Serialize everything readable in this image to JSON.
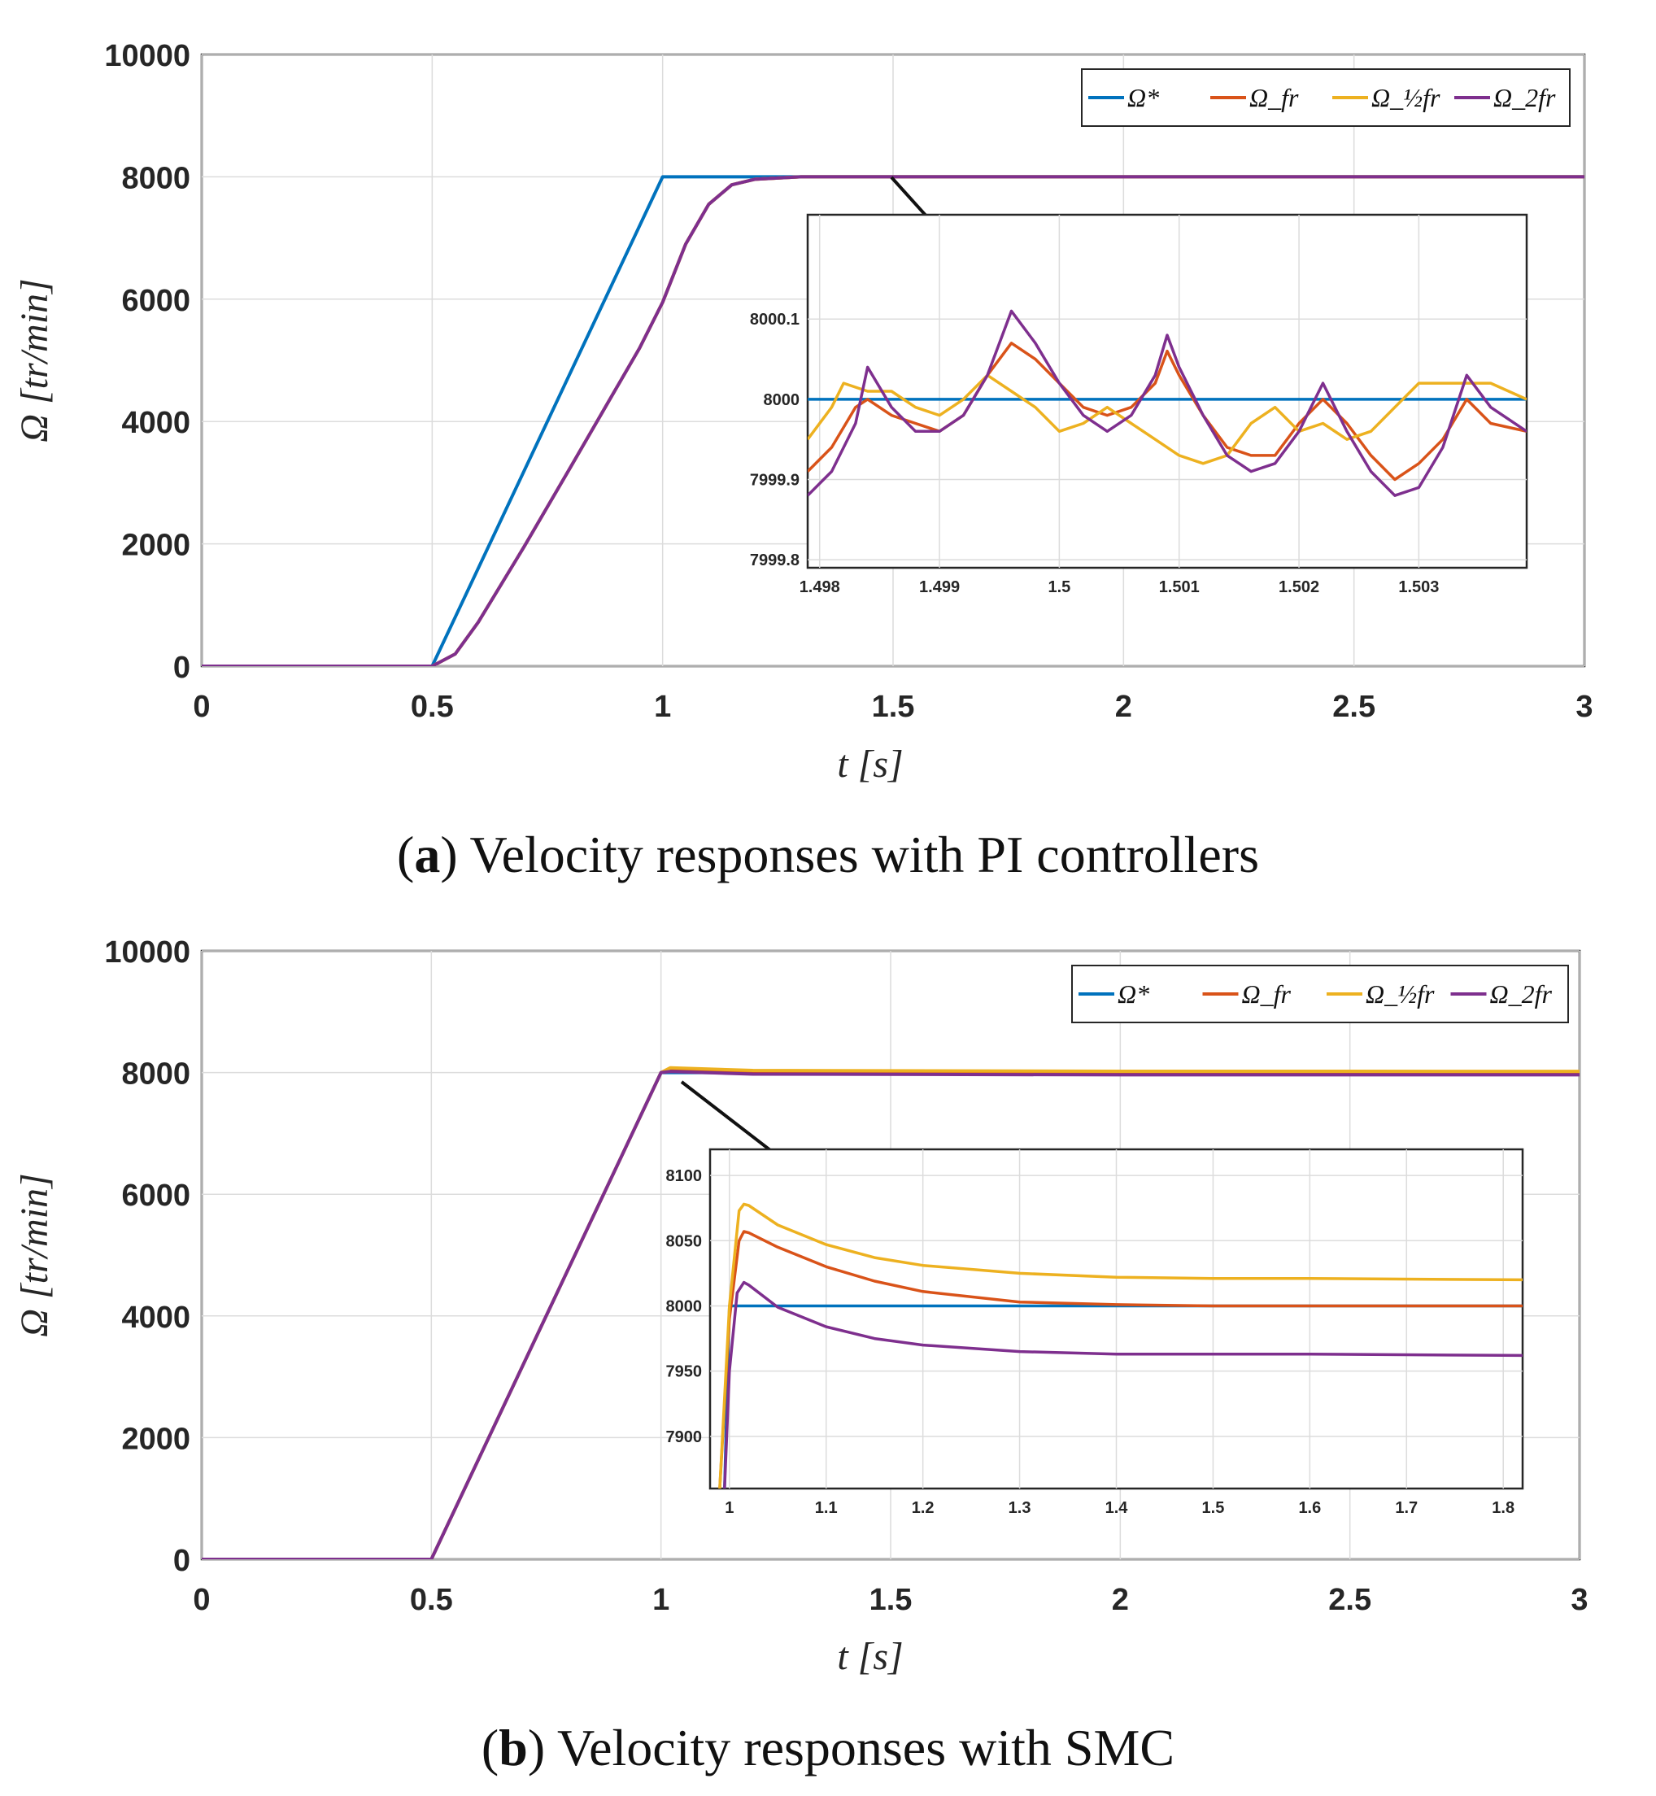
{
  "chart_data": [
    {
      "id": "a",
      "type": "line",
      "caption_letter": "a",
      "caption_text": ") Velocity responses with PI controllers",
      "caption_open": "(",
      "xlabel": "t [s]",
      "ylabel": "Ω [tr/min]",
      "xlim": [
        0,
        3
      ],
      "ylim": [
        0,
        10000
      ],
      "xticks": [
        "0",
        "0.5",
        "1",
        "1.5",
        "2",
        "2.5",
        "3"
      ],
      "yticks": [
        "0",
        "2000",
        "4000",
        "6000",
        "8000",
        "10000"
      ],
      "grid": true,
      "legend": {
        "placement": "top-right",
        "entries": [
          "Ω*",
          "Ω_fr",
          "Ω_½fr",
          "Ω_2fr"
        ]
      },
      "series": [
        {
          "name": "Ω*",
          "color": "#0072BD",
          "x": [
            0,
            0.5,
            1.0,
            3.0
          ],
          "y": [
            0,
            0,
            8000,
            8000
          ]
        },
        {
          "name": "Ω_fr",
          "color": "#D95319",
          "x": [
            0,
            0.5,
            0.55,
            0.6,
            0.7,
            0.8,
            0.9,
            0.95,
            1.0,
            1.05,
            1.1,
            1.15,
            1.2,
            1.3,
            3.0
          ],
          "y": [
            0,
            0,
            200,
            720,
            1960,
            3250,
            4550,
            5200,
            5950,
            6900,
            7550,
            7870,
            7960,
            8000,
            8000
          ]
        },
        {
          "name": "Ω_½fr",
          "color": "#EDB120",
          "x": [
            0,
            0.5,
            0.55,
            0.6,
            0.7,
            0.8,
            0.9,
            0.95,
            1.0,
            1.05,
            1.1,
            1.15,
            1.2,
            1.3,
            3.0
          ],
          "y": [
            0,
            0,
            200,
            720,
            1960,
            3250,
            4550,
            5200,
            5950,
            6900,
            7550,
            7870,
            7960,
            8000,
            8000
          ]
        },
        {
          "name": "Ω_2fr",
          "color": "#7E2F8E",
          "x": [
            0,
            0.5,
            0.55,
            0.6,
            0.7,
            0.8,
            0.9,
            0.95,
            1.0,
            1.05,
            1.1,
            1.15,
            1.2,
            1.3,
            3.0
          ],
          "y": [
            0,
            0,
            200,
            720,
            1960,
            3250,
            4550,
            5200,
            5950,
            6900,
            7550,
            7870,
            7960,
            8000,
            8000
          ]
        }
      ],
      "annotation": {
        "type": "arrow",
        "from": [
          1.5,
          8000
        ],
        "note": "zoom inset"
      },
      "inset": {
        "xlim": [
          1.4979,
          1.5039
        ],
        "ylim": [
          7999.79,
          8000.23
        ],
        "xticks": [
          1.498,
          1.499,
          1.5,
          1.501,
          1.502,
          1.503
        ],
        "xtick_labels": [
          "1.498",
          "1.499",
          "1.5",
          "1.501",
          "1.502",
          "1.503"
        ],
        "yticks": [
          7999.8,
          7999.9,
          8000,
          8000.1
        ],
        "ytick_labels": [
          "7999.8",
          "7999.9",
          "8000",
          "8000.1"
        ],
        "series": [
          {
            "name": "Ω*",
            "color": "#0072BD",
            "x": [
              1.4979,
              1.5039
            ],
            "y": [
              8000,
              8000
            ]
          },
          {
            "name": "Ω_fr",
            "color": "#D95319",
            "x": [
              1.4979,
              1.4981,
              1.4983,
              1.4984,
              1.4986,
              1.4988,
              1.499,
              1.4992,
              1.4994,
              1.4996,
              1.4998,
              1.5,
              1.5002,
              1.5004,
              1.5006,
              1.5008,
              1.5009,
              1.501,
              1.5012,
              1.5014,
              1.5016,
              1.5018,
              1.502,
              1.5022,
              1.5024,
              1.5026,
              1.5028,
              1.503,
              1.5032,
              1.5034,
              1.5036,
              1.5039
            ],
            "y": [
              7999.91,
              7999.94,
              7999.99,
              8000.0,
              7999.98,
              7999.97,
              7999.96,
              7999.98,
              8000.03,
              8000.07,
              8000.05,
              8000.02,
              7999.99,
              7999.98,
              7999.99,
              8000.02,
              8000.06,
              8000.03,
              7999.98,
              7999.94,
              7999.93,
              7999.93,
              7999.97,
              8000.0,
              7999.97,
              7999.93,
              7999.9,
              7999.92,
              7999.95,
              8000.0,
              7999.97,
              7999.96
            ]
          },
          {
            "name": "Ω_½fr",
            "color": "#EDB120",
            "x": [
              1.4979,
              1.4981,
              1.4982,
              1.4984,
              1.4986,
              1.4988,
              1.499,
              1.4992,
              1.4994,
              1.4996,
              1.4998,
              1.5,
              1.5002,
              1.5004,
              1.5006,
              1.5008,
              1.501,
              1.5012,
              1.5014,
              1.5016,
              1.5018,
              1.502,
              1.5022,
              1.5024,
              1.5026,
              1.5028,
              1.503,
              1.5032,
              1.5034,
              1.5036,
              1.5039
            ],
            "y": [
              7999.95,
              7999.99,
              8000.02,
              8000.01,
              8000.01,
              7999.99,
              7999.98,
              8000.0,
              8000.03,
              8000.01,
              7999.99,
              7999.96,
              7999.97,
              7999.99,
              7999.97,
              7999.95,
              7999.93,
              7999.92,
              7999.93,
              7999.97,
              7999.99,
              7999.96,
              7999.97,
              7999.95,
              7999.96,
              7999.99,
              8000.02,
              8000.02,
              8000.02,
              8000.02,
              8000.0
            ]
          },
          {
            "name": "Ω_2fr",
            "color": "#7E2F8E",
            "x": [
              1.4979,
              1.4981,
              1.4983,
              1.4984,
              1.4986,
              1.4988,
              1.499,
              1.4992,
              1.4994,
              1.4996,
              1.4998,
              1.5,
              1.5002,
              1.5004,
              1.5006,
              1.5008,
              1.5009,
              1.501,
              1.5012,
              1.5014,
              1.5016,
              1.5018,
              1.502,
              1.5022,
              1.5024,
              1.5026,
              1.5028,
              1.503,
              1.5032,
              1.5034,
              1.5036,
              1.5039
            ],
            "y": [
              7999.88,
              7999.91,
              7999.97,
              8000.04,
              7999.99,
              7999.96,
              7999.96,
              7999.98,
              8000.03,
              8000.11,
              8000.07,
              8000.02,
              7999.98,
              7999.96,
              7999.98,
              8000.03,
              8000.08,
              8000.04,
              7999.98,
              7999.93,
              7999.91,
              7999.92,
              7999.96,
              8000.02,
              7999.96,
              7999.91,
              7999.88,
              7999.89,
              7999.94,
              8000.03,
              7999.99,
              7999.96
            ]
          }
        ]
      }
    },
    {
      "id": "b",
      "type": "line",
      "caption_letter": "b",
      "caption_text": ") Velocity responses with SMC",
      "caption_open": "(",
      "xlabel": "t [s]",
      "ylabel": "Ω [tr/min]",
      "xlim": [
        0,
        3
      ],
      "ylim": [
        0,
        10000
      ],
      "xticks": [
        "0",
        "0.5",
        "1",
        "1.5",
        "2",
        "2.5",
        "3"
      ],
      "yticks": [
        "0",
        "2000",
        "4000",
        "6000",
        "8000",
        "10000"
      ],
      "grid": true,
      "legend": {
        "placement": "top-right",
        "entries": [
          "Ω*",
          "Ω_fr",
          "Ω_½fr",
          "Ω_2fr"
        ]
      },
      "series": [
        {
          "name": "Ω*",
          "color": "#0072BD",
          "x": [
            0,
            0.5,
            1.0,
            3.0
          ],
          "y": [
            0,
            0,
            8000,
            8000
          ]
        },
        {
          "name": "Ω_fr",
          "color": "#D95319",
          "x": [
            0,
            0.5,
            1.0,
            1.02,
            1.2,
            2.0,
            3.0
          ],
          "y": [
            0,
            0,
            8000,
            8055,
            8015,
            8000,
            8000
          ]
        },
        {
          "name": "Ω_½fr",
          "color": "#EDB120",
          "x": [
            0,
            0.5,
            1.0,
            1.02,
            1.2,
            2.0,
            3.0
          ],
          "y": [
            0,
            0,
            8000,
            8078,
            8035,
            8021,
            8020
          ]
        },
        {
          "name": "Ω_2fr",
          "color": "#7E2F8E",
          "x": [
            0,
            0.5,
            1.0,
            1.02,
            1.2,
            2.0,
            3.0
          ],
          "y": [
            0,
            0,
            8000,
            8018,
            7975,
            7963,
            7962
          ]
        }
      ],
      "annotation": {
        "type": "arrow",
        "from": [
          1.05,
          7900
        ],
        "note": "zoom inset"
      },
      "inset": {
        "xlim": [
          0.98,
          1.82
        ],
        "ylim": [
          7860,
          8120
        ],
        "xticks": [
          1.0,
          1.1,
          1.2,
          1.3,
          1.4,
          1.5,
          1.6,
          1.7,
          1.8
        ],
        "xtick_labels": [
          "1",
          "1.1",
          "1.2",
          "1.3",
          "1.4",
          "1.5",
          "1.6",
          "1.7",
          "1.8"
        ],
        "yticks": [
          7900,
          7950,
          8000,
          8050,
          8100
        ],
        "ytick_labels": [
          "7900",
          "7950",
          "8000",
          "8050",
          "8100"
        ],
        "series": [
          {
            "name": "Ω*",
            "color": "#0072BD",
            "x": [
              0.995,
              1.0,
              1.82
            ],
            "y": [
              7860,
              8000,
              8000
            ]
          },
          {
            "name": "Ω_fr",
            "color": "#D95319",
            "x": [
              0.99,
              1.0,
              1.01,
              1.015,
              1.02,
              1.05,
              1.1,
              1.15,
              1.2,
              1.3,
              1.4,
              1.5,
              1.6,
              1.82
            ],
            "y": [
              7860,
              7990,
              8050,
              8057,
              8056,
              8045,
              8030,
              8019,
              8011,
              8003,
              8001,
              8000,
              8000,
              8000
            ]
          },
          {
            "name": "Ω_½fr",
            "color": "#EDB120",
            "x": [
              0.99,
              1.0,
              1.01,
              1.015,
              1.02,
              1.05,
              1.1,
              1.15,
              1.2,
              1.3,
              1.4,
              1.5,
              1.6,
              1.82
            ],
            "y": [
              7860,
              8000,
              8073,
              8078,
              8077,
              8062,
              8047,
              8037,
              8031,
              8025,
              8022,
              8021,
              8021,
              8020
            ]
          },
          {
            "name": "Ω_2fr",
            "color": "#7E2F8E",
            "x": [
              0.995,
              1.0,
              1.008,
              1.015,
              1.02,
              1.05,
              1.1,
              1.15,
              1.2,
              1.3,
              1.4,
              1.5,
              1.6,
              1.82
            ],
            "y": [
              7860,
              7950,
              8010,
              8018,
              8016,
              7999,
              7984,
              7975,
              7970,
              7965,
              7963,
              7963,
              7963,
              7962
            ]
          }
        ]
      }
    }
  ]
}
